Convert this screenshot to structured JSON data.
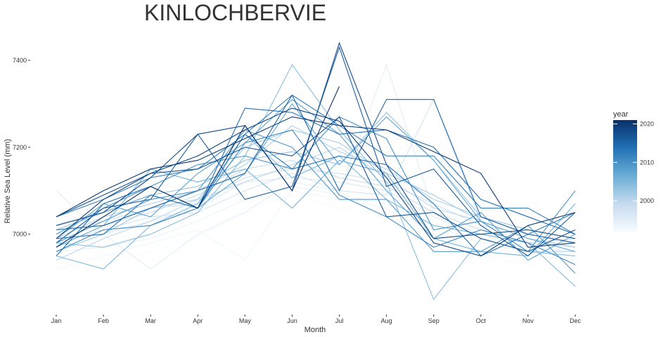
{
  "chart_data": {
    "type": "line",
    "title": "KINLOCHBERVIE",
    "x_label": "Month",
    "y_label": "Relative Sea Level (mm)",
    "categories": [
      "Jan",
      "Feb",
      "Mar",
      "Apr",
      "May",
      "Jun",
      "Jul",
      "Aug",
      "Sep",
      "Oct",
      "Nov",
      "Dec"
    ],
    "ylim": [
      6820,
      7450
    ],
    "yticks": [
      7000,
      7200,
      7400
    ],
    "grid": false,
    "legend": {
      "title": "year",
      "position": "right",
      "lim": [
        1992,
        2021
      ],
      "ticks": [
        2000,
        2010,
        2020
      ],
      "colorscale": [
        "#f7fbff",
        "#c6dbef",
        "#6baed6",
        "#2171b5",
        "#08306b"
      ]
    },
    "series": [
      {
        "year": 1992,
        "values": [
          6850,
          6930,
          6960,
          6990,
          7060,
          7090,
          7060,
          7040,
          6990,
          6950,
          6930,
          6910
        ]
      },
      {
        "year": 1993,
        "values": [
          6920,
          6950,
          6980,
          7010,
          6940,
          7100,
          7080,
          7060,
          7000,
          6960,
          6950,
          6940
        ]
      },
      {
        "year": 1994,
        "values": [
          6960,
          6970,
          6990,
          7030,
          7080,
          7110,
          7090,
          7070,
          7020,
          6980,
          6960,
          6950
        ]
      },
      {
        "year": 1995,
        "values": [
          7100,
          7000,
          6920,
          7000,
          7050,
          7120,
          7100,
          7390,
          7050,
          6990,
          6970,
          6960
        ]
      },
      {
        "year": 1996,
        "values": [
          6990,
          7000,
          7030,
          7060,
          7120,
          7130,
          7120,
          7100,
          7040,
          7000,
          6980,
          6970
        ]
      },
      {
        "year": 1997,
        "values": [
          6980,
          7010,
          7040,
          7050,
          7100,
          7140,
          7100,
          7090,
          7310,
          7030,
          6990,
          6970
        ]
      },
      {
        "year": 1998,
        "values": [
          7000,
          7030,
          7060,
          7070,
          7130,
          7150,
          7140,
          7120,
          7070,
          7020,
          7000,
          6980
        ]
      },
      {
        "year": 1999,
        "values": [
          6970,
          7020,
          7050,
          7090,
          7150,
          7170,
          7130,
          7110,
          7050,
          7010,
          6980,
          6990
        ]
      },
      {
        "year": 2000,
        "values": [
          6940,
          6990,
          7030,
          7080,
          7120,
          7160,
          7200,
          7130,
          7060,
          7030,
          6960,
          6960
        ]
      },
      {
        "year": 2001,
        "values": [
          6990,
          7040,
          7070,
          7100,
          7160,
          7250,
          7190,
          7150,
          7080,
          7040,
          7000,
          6980
        ]
      },
      {
        "year": 2002,
        "values": [
          6960,
          7000,
          7060,
          7080,
          7200,
          7240,
          7210,
          7140,
          7090,
          7030,
          6990,
          6970
        ]
      },
      {
        "year": 2003,
        "values": [
          7010,
          7050,
          7090,
          7110,
          7170,
          7190,
          7160,
          7280,
          7170,
          7040,
          7010,
          6990
        ]
      },
      {
        "year": 2004,
        "values": [
          6980,
          6970,
          7000,
          7050,
          7180,
          7390,
          7240,
          7120,
          6850,
          6990,
          6960,
          6950
        ]
      },
      {
        "year": 2005,
        "values": [
          6950,
          6920,
          7020,
          7070,
          7230,
          7130,
          7180,
          7080,
          7020,
          7000,
          6980,
          6880
        ]
      },
      {
        "year": 2006,
        "values": [
          6970,
          7020,
          7150,
          7120,
          7150,
          7060,
          7170,
          7140,
          6990,
          6960,
          6950,
          7070
        ]
      },
      {
        "year": 2007,
        "values": [
          7020,
          7050,
          7090,
          7060,
          7140,
          7300,
          7160,
          7270,
          7170,
          7030,
          6990,
          6960
        ]
      },
      {
        "year": 2008,
        "values": [
          6990,
          7070,
          7040,
          7140,
          7210,
          7310,
          7230,
          7100,
          6990,
          7050,
          6940,
          7000
        ]
      },
      {
        "year": 2009,
        "values": [
          6980,
          7030,
          7080,
          7100,
          7240,
          7200,
          7080,
          7080,
          6960,
          6960,
          7020,
          6910
        ]
      },
      {
        "year": 2010,
        "values": [
          7000,
          7060,
          7110,
          7160,
          7180,
          7150,
          7270,
          7220,
          7010,
          7030,
          6960,
          7100
        ]
      },
      {
        "year": 2011,
        "values": [
          6960,
          7010,
          7020,
          7060,
          7210,
          7240,
          7090,
          7040,
          6970,
          7010,
          6980,
          6930
        ]
      },
      {
        "year": 2012,
        "values": [
          7040,
          7080,
          7130,
          7150,
          7230,
          7320,
          7250,
          7180,
          7180,
          7060,
          7060,
          7000
        ]
      },
      {
        "year": 2013,
        "values": [
          6990,
          7000,
          7090,
          7060,
          7230,
          7150,
          7180,
          7160,
          7070,
          6950,
          7000,
          7050
        ]
      },
      {
        "year": 2014,
        "values": [
          6950,
          7070,
          7110,
          7060,
          7290,
          7280,
          7230,
          7240,
          7200,
          7080,
          7040,
          7000
        ]
      },
      {
        "year": 2015,
        "values": [
          7010,
          7020,
          7060,
          7100,
          7140,
          7320,
          7100,
          7310,
          7310,
          7040,
          7000,
          6980
        ]
      },
      {
        "year": 2016,
        "values": [
          6980,
          7060,
          7080,
          7230,
          7080,
          7110,
          7430,
          7110,
          7150,
          7020,
          6950,
          7050
        ]
      },
      {
        "year": 2017,
        "values": [
          7040,
          7090,
          7140,
          7150,
          7200,
          7180,
          7270,
          7040,
          7050,
          6990,
          6960,
          7010
        ]
      },
      {
        "year": 2018,
        "values": [
          7020,
          7050,
          7130,
          7230,
          7250,
          7100,
          7440,
          7160,
          6990,
          7000,
          7010,
          6990
        ]
      },
      {
        "year": 2019,
        "values": [
          6990,
          7080,
          7140,
          7180,
          7240,
          7290,
          7260,
          7130,
          6980,
          6950,
          7020,
          7050
        ]
      },
      {
        "year": 2020,
        "values": [
          7040,
          7100,
          7150,
          7170,
          7220,
          7270,
          7250,
          7240,
          7190,
          7140,
          6970,
          6980
        ]
      },
      {
        "year": 2021,
        "values": [
          6970,
          7040,
          7110,
          7060,
          7250,
          7100,
          7340,
          null,
          null,
          null,
          null,
          null
        ]
      }
    ]
  }
}
